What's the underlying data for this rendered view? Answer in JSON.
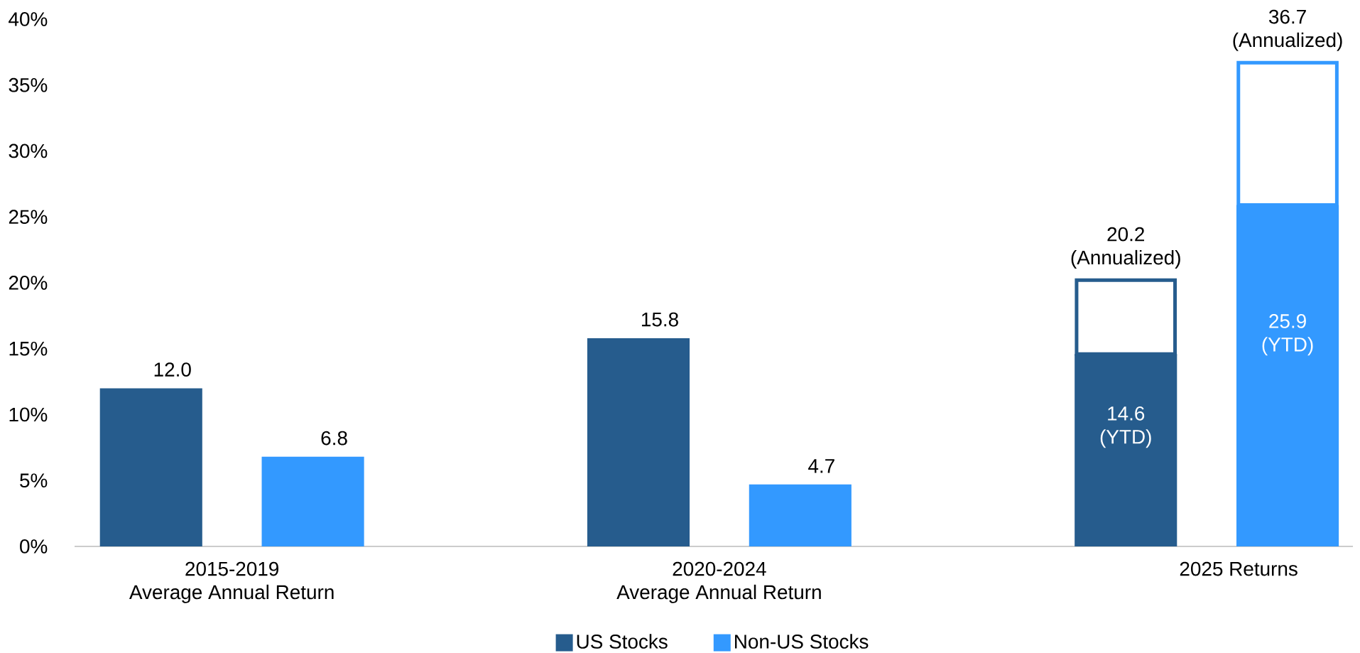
{
  "chart_data": {
    "type": "bar",
    "categories": [
      "2015-2019 Average Annual Return",
      "2020-2024 Average Annual Return",
      "2025 Returns"
    ],
    "series": [
      {
        "name": "US Stocks",
        "color": "#265c8d",
        "values": [
          12.0,
          15.8,
          14.6
        ],
        "value_labels": [
          "12.0",
          "15.8",
          "14.6 (YTD)"
        ]
      },
      {
        "color": "#265c8d",
        "base": [
          null,
          null,
          14.6
        ],
        "values": [
          null,
          null,
          5.6
        ],
        "value_labels": [
          null,
          null,
          "20.2 (Annualized)"
        ]
      },
      {
        "name": "Non-US Stocks",
        "color": "#3399ff",
        "values": [
          6.8,
          4.7,
          25.9
        ],
        "value_labels": [
          "6.8",
          "4.7",
          "25.9 (YTD)"
        ]
      },
      {
        "color": "#3399ff",
        "base": [
          null,
          null,
          25.9
        ],
        "values": [
          null,
          null,
          10.8
        ],
        "value_labels": [
          null,
          null,
          "36.7 (Annualized)"
        ]
      }
    ],
    "ylim": [
      0,
      40
    ],
    "yticks": [
      {
        "value": 0,
        "label": "0%"
      },
      {
        "value": 5,
        "label": "5%"
      },
      {
        "value": 10,
        "label": "10%"
      },
      {
        "value": 15,
        "label": "15%"
      },
      {
        "value": 20,
        "label": "20%"
      },
      {
        "value": 25,
        "label": "25%"
      },
      {
        "value": 30,
        "label": "30%"
      },
      {
        "value": 35,
        "label": "35%"
      },
      {
        "value": 40,
        "label": "40%"
      }
    ],
    "grid": false,
    "legend": "bottom"
  }
}
